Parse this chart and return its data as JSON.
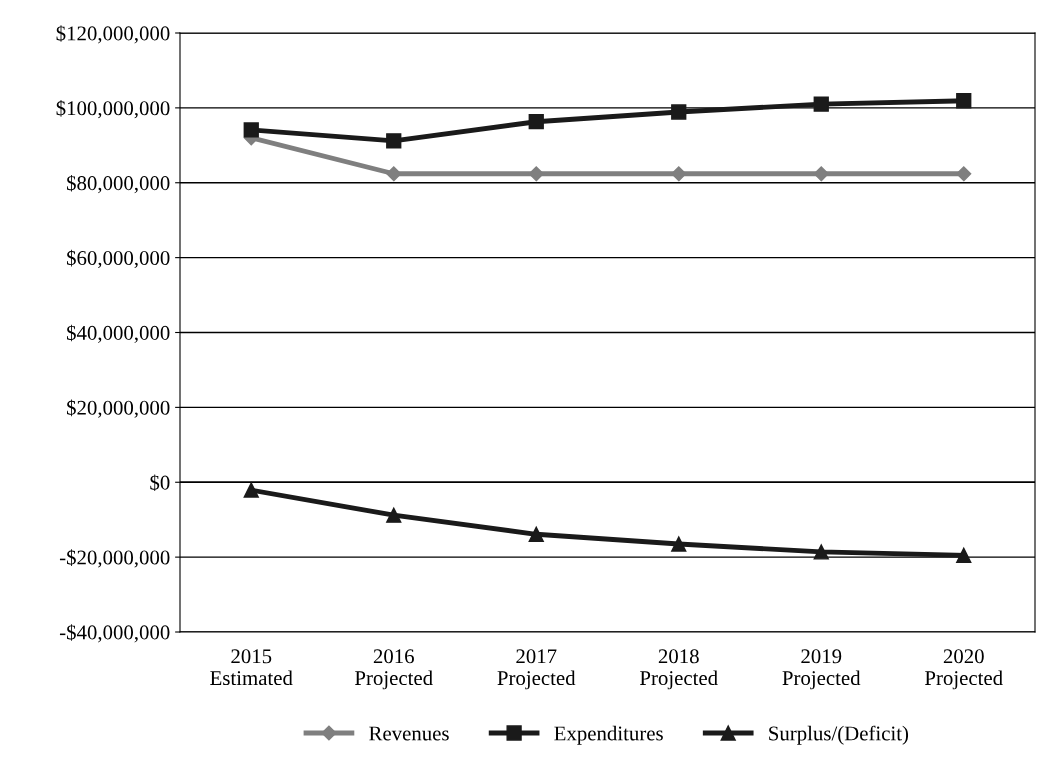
{
  "chart_data": {
    "type": "line",
    "categories": [
      "2015\nEstimated",
      "2016\nProjected",
      "2017\nProjected",
      "2018\nProjected",
      "2019\nProjected",
      "2020\nProjected"
    ],
    "series": [
      {
        "name": "Revenues",
        "color": "#7f7f7f",
        "marker": "diamond",
        "values": [
          92000000,
          82400000,
          82400000,
          82400000,
          82400000,
          82400000
        ]
      },
      {
        "name": "Expenditures",
        "color": "#1a1a1a",
        "marker": "square",
        "values": [
          94100000,
          91200000,
          96300000,
          98900000,
          101000000,
          101900000
        ]
      },
      {
        "name": "Surplus/(Deficit)",
        "color": "#1a1a1a",
        "marker": "triangle",
        "values": [
          -2100000,
          -8800000,
          -13900000,
          -16500000,
          -18600000,
          -19500000
        ]
      }
    ],
    "ylim": [
      -40000000,
      120000000
    ],
    "yticks": [
      {
        "value": -40000000,
        "label": "-$40,000,000"
      },
      {
        "value": -20000000,
        "label": "-$20,000,000"
      },
      {
        "value": 0,
        "label": "$0"
      },
      {
        "value": 20000000,
        "label": "$20,000,000"
      },
      {
        "value": 40000000,
        "label": "$40,000,000"
      },
      {
        "value": 60000000,
        "label": "$60,000,000"
      },
      {
        "value": 80000000,
        "label": "$80,000,000"
      },
      {
        "value": 100000000,
        "label": "$100,000,000"
      },
      {
        "value": 120000000,
        "label": "$120,000,000"
      }
    ],
    "grid": "y",
    "legend": "bottom",
    "line_style": "solid"
  }
}
